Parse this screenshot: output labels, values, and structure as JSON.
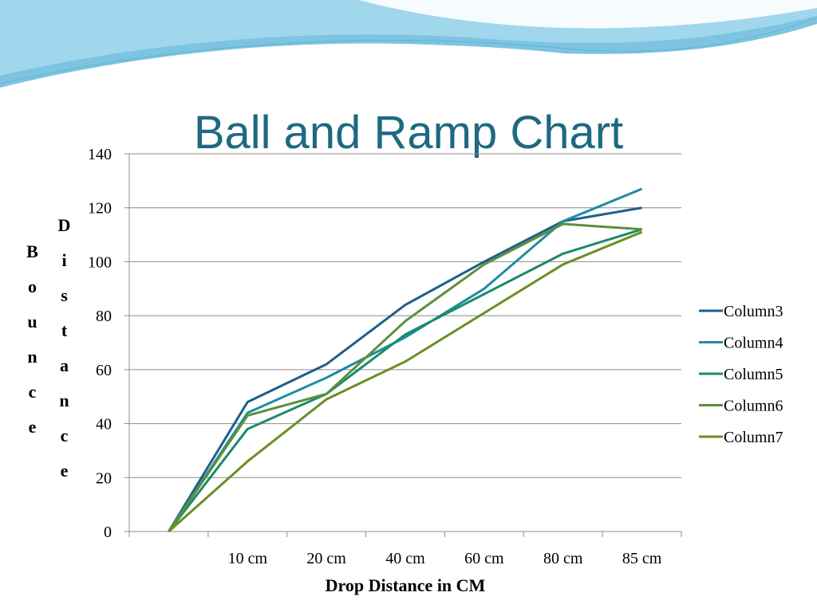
{
  "chart_data": {
    "type": "line",
    "title": "Ball and Ramp Chart",
    "x_label": "Drop Distance in CM",
    "y_label": "Bounce Distance",
    "categories": [
      null,
      "10 cm",
      "20 cm",
      "40 cm",
      "60 cm",
      "80 cm",
      "85 cm"
    ],
    "ylim": [
      0,
      140
    ],
    "yticks": [
      0,
      20,
      40,
      60,
      80,
      100,
      120,
      140
    ],
    "grid": true,
    "legend": "right",
    "series": [
      {
        "name": "Column3",
        "color": "#1f5f8b",
        "values": [
          0,
          48,
          62,
          84,
          100,
          115,
          120
        ]
      },
      {
        "name": "Column4",
        "color": "#1e8ca0",
        "values": [
          0,
          44,
          57,
          72,
          90,
          115,
          127
        ]
      },
      {
        "name": "Column5",
        "color": "#1a8a6a",
        "values": [
          0,
          38,
          51,
          73,
          88,
          103,
          112
        ]
      },
      {
        "name": "Column6",
        "color": "#5b8f3a",
        "values": [
          0,
          43,
          51,
          78,
          99,
          114,
          112
        ]
      },
      {
        "name": "Column7",
        "color": "#6b8e23",
        "values": [
          0,
          26,
          49,
          63,
          81,
          99,
          111
        ]
      }
    ]
  }
}
